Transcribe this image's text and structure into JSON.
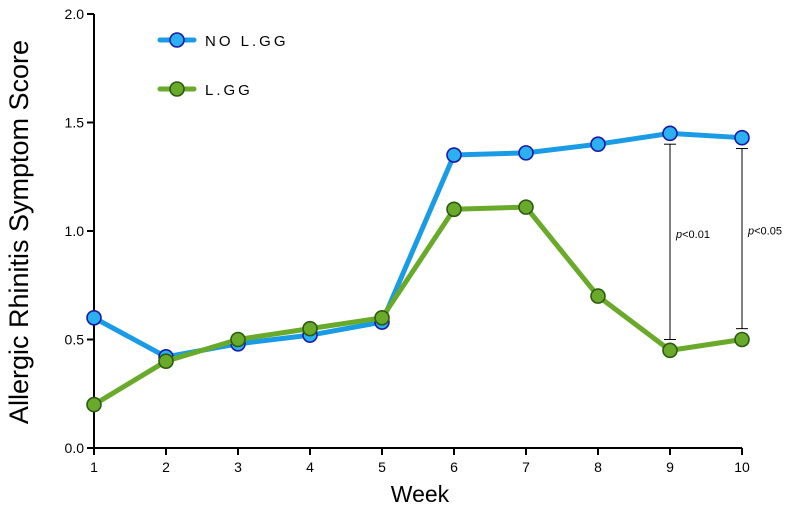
{
  "chart_data": {
    "type": "line",
    "xlabel": "Week",
    "ylabel": "Allergic Rhinitis Symptom Score",
    "x": [
      1,
      2,
      3,
      4,
      5,
      6,
      7,
      8,
      9,
      10
    ],
    "xlim": [
      1,
      10
    ],
    "ylim": [
      0.0,
      2.0
    ],
    "y_ticks": [
      "0.0",
      "0.5",
      "1.0",
      "1.5",
      "2.0"
    ],
    "y_tick_values": [
      0.0,
      0.5,
      1.0,
      1.5,
      2.0
    ],
    "x_ticks": [
      "1",
      "2",
      "3",
      "4",
      "5",
      "6",
      "7",
      "8",
      "9",
      "10"
    ],
    "grid": false,
    "legend_position": "top-left",
    "series": [
      {
        "name": "NO L.GG",
        "color": "#1a9be6",
        "marker_fill": "#2bb0f0",
        "marker_edge": "#1a1aa8",
        "values": [
          0.6,
          0.42,
          0.48,
          0.52,
          0.58,
          1.35,
          1.36,
          1.4,
          1.45,
          1.43
        ]
      },
      {
        "name": "L.GG",
        "color": "#6aaa2a",
        "marker_fill": "#6aaa2a",
        "marker_edge": "#2e5a10",
        "values": [
          0.2,
          0.4,
          0.5,
          0.55,
          0.6,
          1.1,
          1.11,
          0.7,
          0.45,
          0.5
        ]
      }
    ],
    "annotations": [
      {
        "x": 9,
        "y_top": 1.4,
        "y_bottom": 0.5,
        "p_symbol": "p",
        "text": "<0.01"
      },
      {
        "x": 10,
        "y_top": 1.38,
        "y_bottom": 0.55,
        "p_symbol": "p",
        "text": "<0.05"
      }
    ]
  }
}
